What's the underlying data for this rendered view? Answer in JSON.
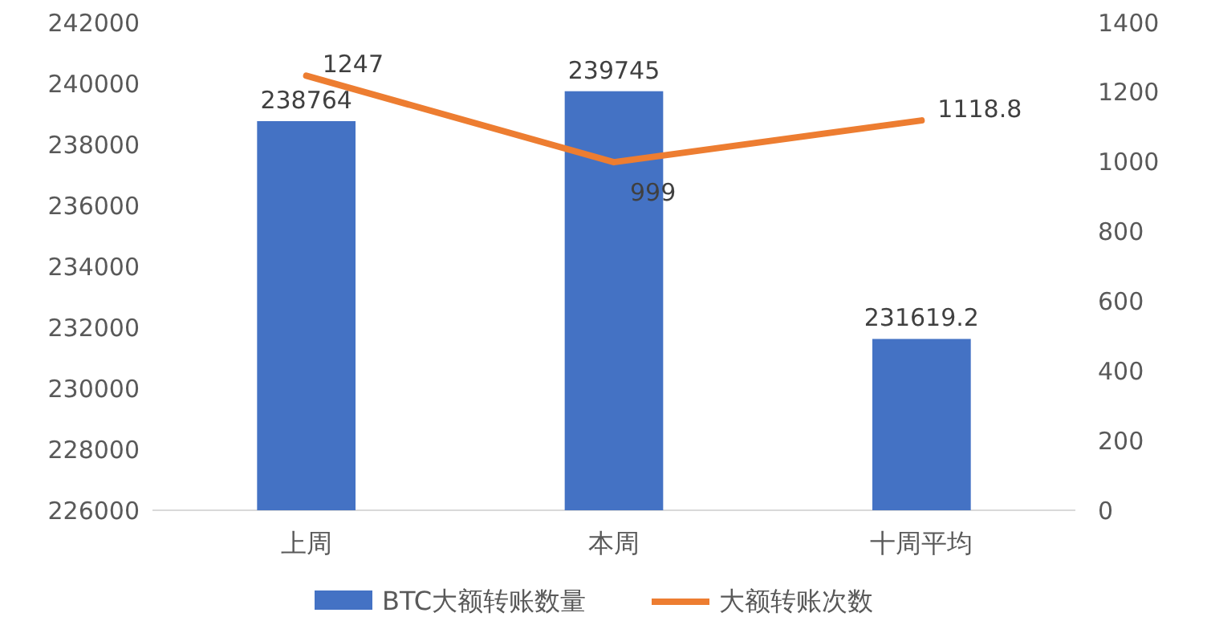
{
  "chart_data": {
    "type": "bar",
    "categories": [
      "上周",
      "本周",
      "十周平均"
    ],
    "series": [
      {
        "name": "BTC大额转账数量",
        "color": "#4472c4",
        "values": [
          238764,
          239745,
          231619.2
        ]
      },
      {
        "name": "大额转账次数",
        "color": "#ed7d31",
        "type": "line",
        "axis": "y2",
        "values": [
          1247,
          999,
          1118.8
        ]
      }
    ],
    "ylim": [
      226000,
      242000
    ],
    "yticks": [
      226000,
      228000,
      230000,
      232000,
      234000,
      236000,
      238000,
      240000,
      242000
    ],
    "y2lim": [
      0,
      1400
    ],
    "y2ticks": [
      0,
      200,
      400,
      600,
      800,
      1000,
      1200,
      1400
    ],
    "data_labels": true,
    "legend": "bottom",
    "grid": false
  }
}
